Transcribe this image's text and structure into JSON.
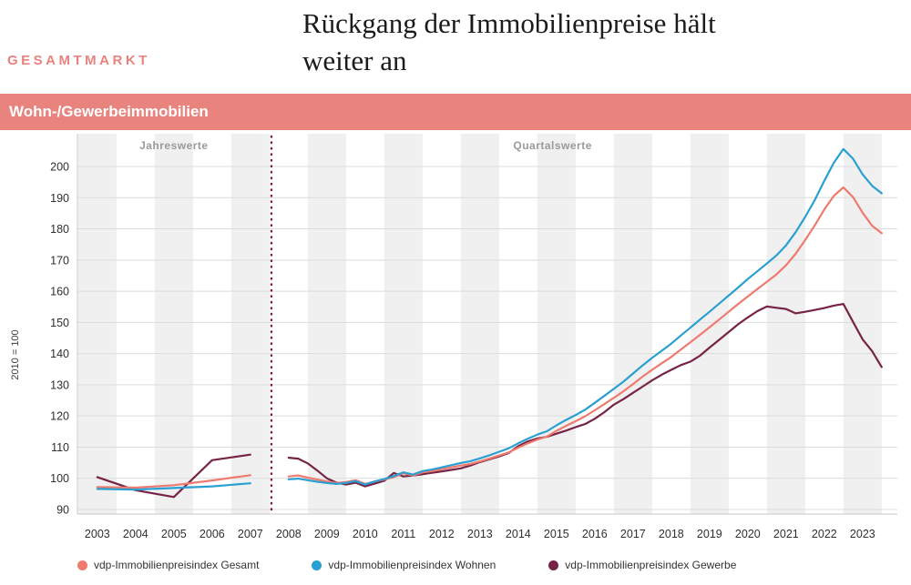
{
  "eyebrow": "GESAMTMARKT",
  "title": "Rückgang der Immobilienpreise hält weiter an",
  "banner": "Wohn-/Gewerbeimmobilien",
  "ylabel": "2010 = 100",
  "chart_data": {
    "type": "line",
    "title": "Wohn-/Gewerbeimmobilien",
    "ylabel": "2010 = 100",
    "ylim": [
      88,
      211
    ],
    "yticks": [
      90,
      100,
      110,
      120,
      130,
      140,
      150,
      160,
      170,
      180,
      190,
      200
    ],
    "years": [
      2003,
      2004,
      2005,
      2006,
      2007,
      2008,
      2009,
      2010,
      2011,
      2012,
      2013,
      2014,
      2015,
      2016,
      2017,
      2018,
      2019,
      2020,
      2021,
      2022,
      2023
    ],
    "section_left": "Jahreswerte",
    "section_right": "Quartalswerte",
    "divider_year": 2007.55,
    "annual_years": [
      2003,
      2004,
      2005,
      2006,
      2007
    ],
    "quarterly_start_year": 2008,
    "style": {
      "band_color": "#f0f0f0",
      "grid_color": "#dcdcdc",
      "axis_color": "#c8c8c8",
      "divider_color": "#7d1f3c"
    },
    "series": [
      {
        "name": "vdp-Immobilienpreisindex Gesamt",
        "color": "#ee7a70",
        "annual": [
          97.2,
          97.0,
          97.8,
          99.3,
          101.0
        ],
        "quarterly": [
          100.6,
          100.9,
          100.2,
          99.6,
          99.0,
          98.5,
          98.8,
          99.4,
          98.2,
          99.0,
          99.6,
          100.4,
          101.6,
          100.9,
          101.9,
          102.3,
          102.9,
          103.5,
          104.1,
          104.6,
          105.4,
          106.3,
          107.3,
          108.3,
          109.8,
          111.2,
          112.4,
          113.4,
          115.2,
          116.8,
          118.3,
          119.9,
          121.8,
          123.8,
          125.8,
          127.9,
          130.2,
          132.6,
          134.8,
          136.9,
          138.9,
          141.3,
          143.6,
          146.0,
          148.4,
          150.9,
          153.4,
          155.9,
          158.3,
          160.7,
          163.0,
          165.4,
          168.3,
          172.0,
          176.4,
          181.1,
          186.2,
          190.6,
          193.3,
          190.2,
          185.2,
          181.0,
          178.6
        ]
      },
      {
        "name": "vdp-Immobilienpreisindex Wohnen",
        "color": "#2aa0d2",
        "annual": [
          96.6,
          96.4,
          96.9,
          97.4,
          98.4
        ],
        "quarterly": [
          99.7,
          99.9,
          99.4,
          98.9,
          98.5,
          98.2,
          98.5,
          99.1,
          98.0,
          99.0,
          99.8,
          100.7,
          101.9,
          101.2,
          102.3,
          102.8,
          103.5,
          104.2,
          104.9,
          105.5,
          106.4,
          107.4,
          108.5,
          109.6,
          111.2,
          112.7,
          114.0,
          115.1,
          117.0,
          118.7,
          120.3,
          122.0,
          124.2,
          126.4,
          128.7,
          131.0,
          133.6,
          136.2,
          138.6,
          140.9,
          143.2,
          145.8,
          148.3,
          150.9,
          153.4,
          156.0,
          158.6,
          161.2,
          163.9,
          166.4,
          168.9,
          171.5,
          174.7,
          178.9,
          183.8,
          189.2,
          195.4,
          201.2,
          205.6,
          202.5,
          197.5,
          193.8,
          191.4
        ]
      },
      {
        "name": "vdp-Immobilienpreisindex Gewerbe",
        "color": "#762345",
        "annual": [
          100.4,
          96.2,
          94.0,
          105.8,
          107.6
        ],
        "quarterly": [
          106.6,
          106.3,
          104.8,
          102.5,
          100.0,
          98.6,
          98.0,
          98.6,
          97.4,
          98.3,
          99.2,
          101.7,
          100.6,
          100.9,
          101.3,
          101.8,
          102.2,
          102.7,
          103.2,
          104.1,
          105.2,
          106.1,
          107.0,
          108.1,
          110.3,
          111.8,
          112.8,
          113.3,
          114.3,
          115.3,
          116.4,
          117.4,
          119.1,
          121.2,
          123.6,
          125.4,
          127.4,
          129.4,
          131.4,
          133.2,
          134.8,
          136.3,
          137.4,
          139.3,
          141.9,
          144.4,
          146.9,
          149.4,
          151.6,
          153.6,
          155.1,
          154.7,
          154.3,
          152.9,
          153.4,
          154.0,
          154.6,
          155.4,
          155.9,
          150.2,
          144.6,
          140.8,
          135.7
        ]
      }
    ]
  },
  "legend": [
    {
      "label": "vdp-Immobilienpreisindex Gesamt",
      "color": "#ee7a70"
    },
    {
      "label": "vdp-Immobilienpreisindex Wohnen",
      "color": "#2aa0d2"
    },
    {
      "label": "vdp-Immobilienpreisindex Gewerbe",
      "color": "#762345"
    }
  ]
}
